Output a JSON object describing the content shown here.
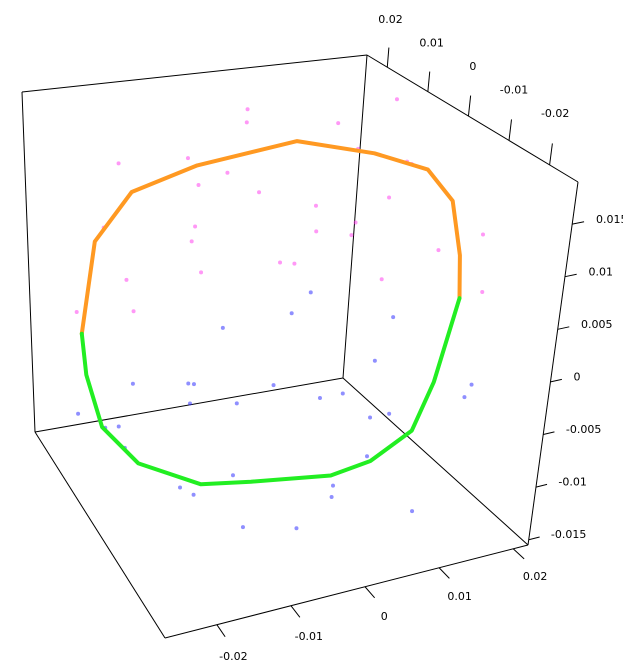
{
  "chart_data": {
    "type": "scatter3d",
    "xlim": [
      -0.027,
      0.022
    ],
    "ylim": [
      -0.027,
      0.025
    ],
    "zlim": [
      -0.0155,
      0.019
    ],
    "xticks": [
      -0.02,
      -0.01,
      0,
      0.01,
      0.02
    ],
    "yticks": [
      0.02,
      0.01,
      0,
      -0.01,
      -0.02
    ],
    "zticks": [
      0.015,
      0.01,
      0.005,
      0,
      -0.005,
      -0.01,
      -0.015
    ],
    "series": [
      {
        "mode": "points",
        "color": "#ff44ee",
        "x": [
          -0.025,
          -0.02,
          -0.015,
          -0.01,
          -0.005,
          0,
          0.005,
          0.01,
          0.015,
          0.02,
          0.02,
          -0.022,
          -0.018,
          -0.008,
          0.0,
          0.008,
          0.012,
          0.018,
          -0.012,
          -0.003,
          0.004,
          0.015,
          -0.02,
          -0.016,
          0.006,
          0.019,
          -0.026,
          0.01,
          0.0,
          -0.006
        ],
        "y": [
          -0.005,
          0.01,
          0.0,
          -0.01,
          0.005,
          0.015,
          -0.005,
          0.01,
          0.0,
          -0.01,
          0.01,
          0.0,
          -0.012,
          0.012,
          -0.015,
          0.0,
          0.018,
          -0.015,
          0.005,
          -0.002,
          0.008,
          0.005,
          0.015,
          -0.005,
          -0.012,
          0.012,
          0.01,
          -0.018,
          0.02,
          -0.018
        ],
        "z": [
          0.01,
          0.016,
          0.019,
          0.018,
          0.02,
          0.018,
          0.019,
          0.017,
          0.015,
          0.01,
          0.012,
          0.005,
          0.012,
          0.012,
          0.014,
          0.01,
          0.006,
          0.006,
          0.009,
          0.008,
          0.004,
          0.002,
          0.008,
          0.014,
          0.016,
          0.018,
          0.002,
          0.012,
          0.01,
          0.016
        ]
      },
      {
        "mode": "points",
        "color": "#3333ff",
        "x": [
          -0.025,
          -0.02,
          -0.015,
          -0.01,
          -0.005,
          0,
          0.005,
          0.01,
          0.015,
          0.02,
          0.02,
          -0.022,
          -0.018,
          -0.008,
          0.0,
          0.008,
          0.012,
          0.018,
          -0.012,
          -0.003,
          0.004,
          0.015,
          -0.02,
          -0.016,
          0.006,
          0.019,
          -0.026,
          0.01,
          0.0,
          -0.006
        ],
        "y": [
          -0.005,
          0.01,
          0.0,
          -0.01,
          0.005,
          0.015,
          -0.005,
          0.01,
          0.0,
          -0.01,
          0.01,
          0.0,
          -0.012,
          0.012,
          -0.015,
          0.0,
          0.018,
          -0.015,
          0.005,
          -0.002,
          0.008,
          0.005,
          0.015,
          -0.005,
          -0.012,
          0.012,
          0.01,
          -0.018,
          0.02,
          -0.018
        ],
        "z": [
          -0.006,
          -0.01,
          -0.013,
          -0.014,
          -0.015,
          -0.012,
          -0.014,
          -0.011,
          -0.01,
          -0.006,
          -0.004,
          -0.002,
          -0.009,
          -0.008,
          -0.011,
          -0.007,
          -0.003,
          -0.003,
          -0.005,
          -0.004,
          -0.001,
          -0.012,
          -0.012,
          -0.003,
          -0.009,
          -0.009,
          -0.008,
          -0.013,
          -0.006,
          -0.012
        ]
      },
      {
        "mode": "line",
        "color": "#ff9922",
        "x": [
          -0.0295,
          -0.0277,
          -0.0228,
          -0.0142,
          -0.0011,
          0.0093,
          0.0167,
          0.0205,
          0.0223,
          0.0229
        ],
        "y": [
          -0.001,
          -0.001,
          -0.001,
          -0.001,
          -0.001,
          -0.001,
          -0.001,
          -0.001,
          -0.001,
          -0.001
        ],
        "z": [
          0.0041,
          0.0127,
          0.0169,
          0.0185,
          0.0194,
          0.017,
          0.0145,
          0.0109,
          0.0052,
          0.0008
        ]
      },
      {
        "mode": "line",
        "color": "#22ee22",
        "x": [
          0.0229,
          0.0205,
          0.018,
          0.0123,
          0.0066,
          -0.0051,
          -0.0124,
          -0.0215,
          -0.0267,
          -0.0289,
          -0.0295
        ],
        "y": [
          -0.001,
          -0.001,
          -0.001,
          -0.001,
          -0.001,
          -0.001,
          -0.001,
          -0.001,
          -0.001,
          -0.001,
          -0.001
        ],
        "z": [
          0.0008,
          -0.0073,
          -0.0118,
          -0.014,
          -0.0146,
          -0.0135,
          -0.0127,
          -0.0094,
          -0.0052,
          0.0001,
          0.0041
        ]
      }
    ]
  }
}
